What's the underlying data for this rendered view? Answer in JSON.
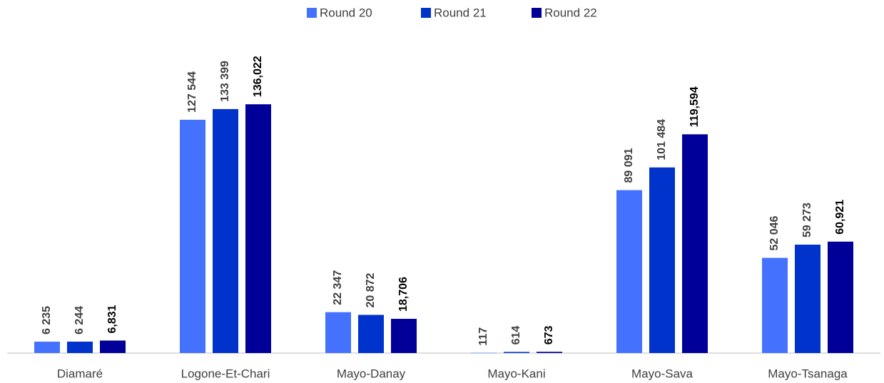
{
  "chart_data": {
    "type": "bar",
    "categories": [
      "Diamaré",
      "Logone-Et-Chari",
      "Mayo-Danay",
      "Mayo-Kani",
      "Mayo-Sava",
      "Mayo-Tsanaga"
    ],
    "series": [
      {
        "name": "Round 20",
        "color": "#4472ff",
        "values": [
          6235,
          127544,
          22347,
          117,
          89091,
          52046
        ],
        "value_labels": [
          "6 235",
          "127 544",
          "22 347",
          "117",
          "89 091",
          "52 046"
        ]
      },
      {
        "name": "Round 21",
        "color": "#0033cc",
        "values": [
          6244,
          133399,
          20872,
          614,
          101484,
          59273
        ],
        "value_labels": [
          "6 244",
          "133 399",
          "20 872",
          "614",
          "101 484",
          "59 273"
        ]
      },
      {
        "name": "Round 22",
        "color": "#000099",
        "values": [
          6831,
          136022,
          18706,
          673,
          119594,
          60921
        ],
        "value_labels": [
          "6,831",
          "136,022",
          "18,706",
          "673",
          "119,594",
          "60,921"
        ]
      }
    ],
    "ylim": [
      0,
      140000
    ],
    "legend": "top"
  }
}
